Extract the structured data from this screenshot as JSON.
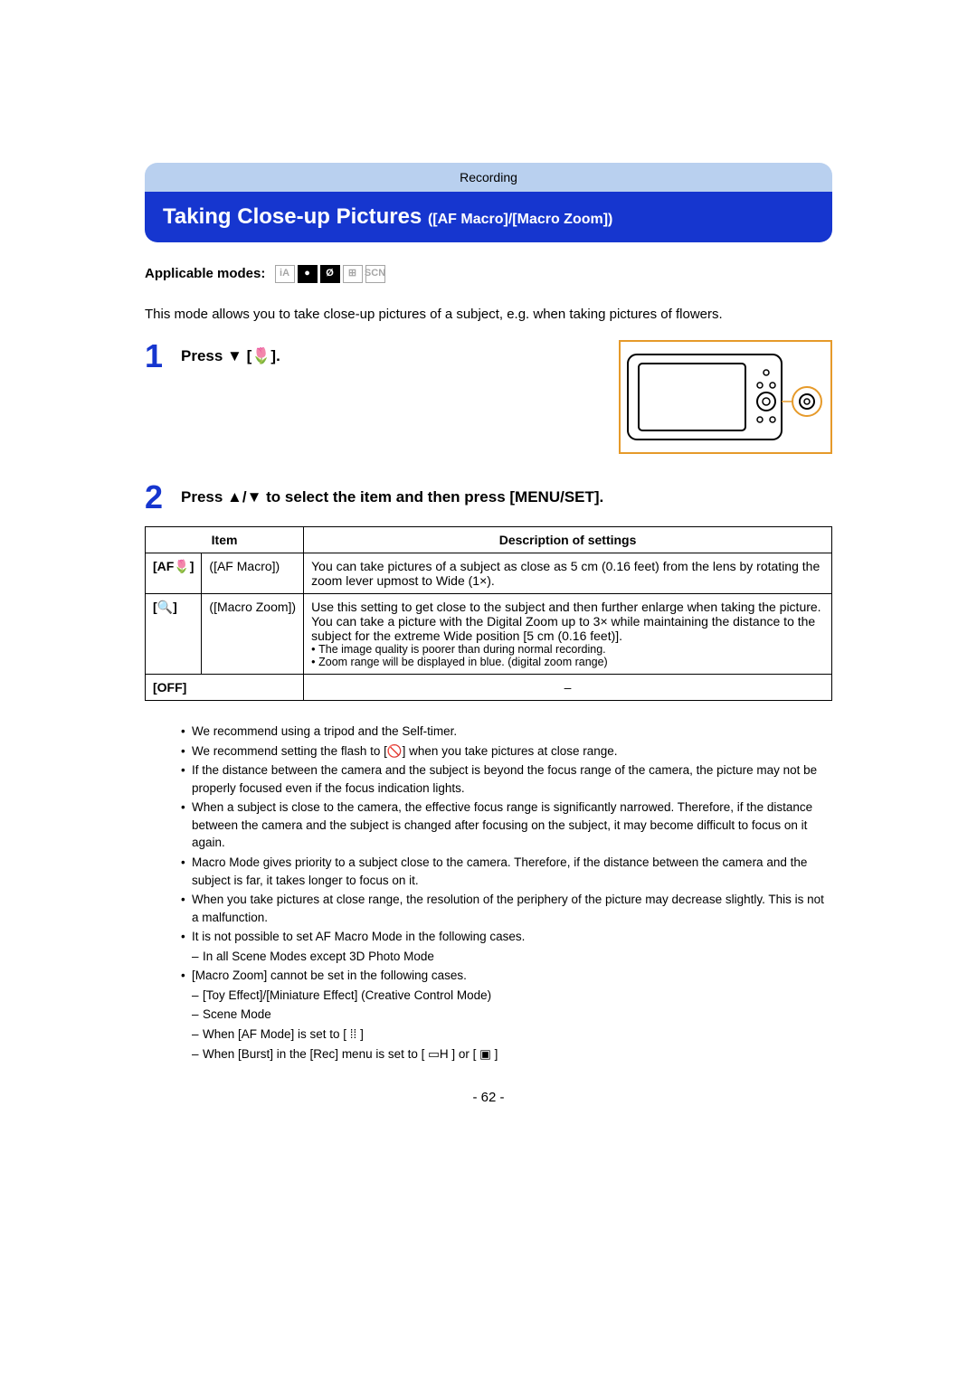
{
  "breadcrumb": "Recording",
  "title_main": "Taking Close-up Pictures",
  "title_sub": "([AF Macro]/[Macro Zoom])",
  "applicable_label": "Applicable modes:",
  "mode_icons": [
    {
      "label": "iA",
      "dim": true
    },
    {
      "label": "●",
      "filled": true
    },
    {
      "label": "Ø",
      "filled": true
    },
    {
      "label": "⊞",
      "dim": true
    },
    {
      "label": "SCN",
      "dim": true
    }
  ],
  "intro": "This mode allows you to take close-up pictures of a subject, e.g. when taking pictures of flowers.",
  "step1_text": "Press ▼ [🌷].",
  "step2_text": "Press ▲/▼ to select the item and then press [MENU/SET].",
  "table": {
    "headers": [
      "Item",
      "Description of settings"
    ],
    "rows": [
      {
        "icon": "[AF🌷]",
        "name": "([AF Macro])",
        "desc": "You can take pictures of a subject as close as 5 cm (0.16 feet) from the lens by rotating the zoom lever upmost to Wide (1×).",
        "notes": []
      },
      {
        "icon": "[🔍]",
        "name": "([Macro Zoom])",
        "desc": "Use this setting to get close to the subject and then further enlarge when taking the picture.\nYou can take a picture with the Digital Zoom up to 3× while maintaining the distance to the subject for the extreme Wide position [5 cm (0.16 feet)].",
        "notes": [
          "The image quality is poorer than during normal recording.",
          "Zoom range will be displayed in blue. (digital zoom range)"
        ]
      },
      {
        "icon": "[OFF]",
        "name": "",
        "desc": "–",
        "notes": []
      }
    ]
  },
  "notes": [
    {
      "text": "We recommend using a tripod and the Self-timer."
    },
    {
      "text": "We recommend setting the flash to [🚫] when you take pictures at close range."
    },
    {
      "text": "If the distance between the camera and the subject is beyond the focus range of the camera, the picture may not be properly focused even if the focus indication lights."
    },
    {
      "text": "When a subject is close to the camera, the effective focus range is significantly narrowed. Therefore, if the distance between the camera and the subject is changed after focusing on the subject, it may become difficult to focus on it again."
    },
    {
      "text": "Macro Mode gives priority to a subject close to the camera. Therefore, if the distance between the camera and the subject is far, it takes longer to focus on it."
    },
    {
      "text": "When you take pictures at close range, the resolution of the periphery of the picture may decrease slightly. This is not a malfunction."
    },
    {
      "text": "It is not possible to set AF Macro Mode in the following cases."
    },
    {
      "text": "In all Scene Modes except 3D Photo Mode",
      "sub": true
    },
    {
      "text": "[Macro Zoom] cannot be set in the following cases."
    },
    {
      "text": "[Toy Effect]/[Miniature Effect] (Creative Control Mode)",
      "sub": true
    },
    {
      "text": "Scene Mode",
      "sub": true
    },
    {
      "text": "When [AF Mode] is set to [ ⁞⁞ ]",
      "sub": true
    },
    {
      "text": "When [Burst] in the [Rec] menu is set to [ ▭H ] or [ ▣ ]",
      "sub": true
    }
  ],
  "page_number": "- 62 -",
  "colors": {
    "breadcrumb_bg": "#b9d0ef",
    "title_bg": "#1636cf",
    "title_fg": "#ffffff",
    "accent": "#e69a2a"
  }
}
